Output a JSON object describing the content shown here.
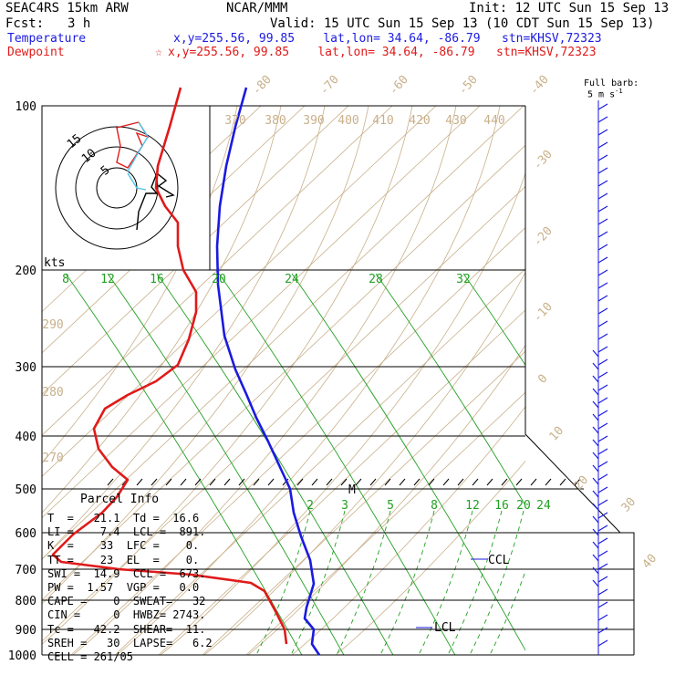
{
  "header": {
    "model": "SEAC4RS 15km ARW",
    "fcst_label": "Fcst:",
    "fcst_value": "3 h",
    "center": "NCAR/MMM",
    "init": "Init: 12 UTC Sun 15 Sep 13",
    "valid": "Valid: 15 UTC Sun 15 Sep 13 (10 CDT Sun 15 Sep 13)",
    "temperature_label": "Temperature",
    "temperature_info": "x,y=255.56, 99.85    lat,lon= 34.64, -86.79   stn=KHSV,72323",
    "dewpoint_label": "Dewpoint",
    "dewpoint_marker": "☆",
    "dewpoint_info": "x,y=255.56, 99.85    lat,lon= 34.64, -86.79   stn=KHSV,72323",
    "barb_note_1": "Full barb:",
    "barb_note_2": "5 m s",
    "barb_note_sup": "-1"
  },
  "colors": {
    "temperature": "#1a1ae0",
    "dewpoint": "#e01a1a",
    "isotherm": "#c8b08a",
    "mixing_ratio": "#22a022",
    "hodo_low": "#4fc3e8"
  },
  "chart_data": {
    "type": "line",
    "title": "",
    "ylabel": "",
    "pressure_levels": [
      "100",
      "200",
      "300",
      "400",
      "500",
      "600",
      "700",
      "800",
      "900",
      "1000"
    ],
    "isotherm_labels": [
      "-80",
      "-70",
      "-60",
      "-50",
      "-40",
      "-30",
      "-20",
      "-10",
      "0",
      "10",
      "20",
      "30",
      "40"
    ],
    "theta_labels_top": [
      "370",
      "380",
      "390",
      "400",
      "410",
      "420",
      "430",
      "440"
    ],
    "theta_labels_left": [
      "290",
      "280",
      "270"
    ],
    "mixing_ratio_labels_upper": [
      "8",
      "12",
      "16",
      "20",
      "24",
      "28",
      "32"
    ],
    "mixing_ratio_labels_lower": [
      "2",
      "3",
      "5",
      "8",
      "12",
      "16",
      "20",
      "24"
    ],
    "hodograph": {
      "unit_label": "kts",
      "ring_labels": [
        "15",
        "10",
        "5"
      ]
    },
    "annotations": {
      "ccl": "CCL",
      "lcl": "LCL",
      "m": "M"
    },
    "series": [
      {
        "name": "Temperature",
        "points": [
          [
            270,
            96
          ],
          [
            258,
            139
          ],
          [
            248,
            182
          ],
          [
            241,
            226
          ],
          [
            238,
            270
          ],
          [
            239,
            312
          ],
          [
            246,
            368
          ],
          [
            258,
            405
          ],
          [
            270,
            432
          ],
          [
            281,
            458
          ],
          [
            294,
            484
          ],
          [
            306,
            510
          ],
          [
            318,
            536
          ],
          [
            322,
            562
          ],
          [
            330,
            588
          ],
          [
            340,
            614
          ],
          [
            344,
            640
          ],
          [
            336,
            666
          ],
          [
            334,
            678
          ],
          [
            344,
            690
          ],
          [
            342,
            706
          ],
          [
            350,
            718
          ]
        ]
      },
      {
        "name": "Dewpoint",
        "points": [
          [
            198,
            96
          ],
          [
            186,
            139
          ],
          [
            173,
            182
          ],
          [
            171,
            206
          ],
          [
            181,
            226
          ],
          [
            195,
            244
          ],
          [
            195,
            270
          ],
          [
            201,
            296
          ],
          [
            215,
            320
          ],
          [
            215,
            342
          ],
          [
            207,
            372
          ],
          [
            195,
            400
          ],
          [
            171,
            418
          ],
          [
            140,
            433
          ],
          [
            115,
            448
          ],
          [
            103,
            470
          ],
          [
            108,
            492
          ],
          [
            123,
            512
          ],
          [
            140,
            526
          ],
          [
            128,
            545
          ],
          [
            112,
            562
          ],
          [
            80,
            586
          ],
          [
            58,
            608
          ],
          [
            67,
            616
          ],
          [
            130,
            624
          ],
          [
            210,
            630
          ],
          [
            275,
            639
          ],
          [
            290,
            648
          ],
          [
            302,
            670
          ],
          [
            312,
            690
          ],
          [
            314,
            706
          ]
        ]
      }
    ]
  },
  "parcel_info": {
    "title": "Parcel Info",
    "rows": [
      "T  =   21.1  Td =  16.6",
      "LI =    7.4  LCL =  891.",
      "K  =    33  LFC =    0.",
      "TT =    23  EL  =    0.",
      "SWI =  14.9  CCL =  673.",
      "PW =  1.57  VGP =   0.0",
      "CAPE =    0  SWEAT=   32",
      "CIN =     0  HWBZ= 2743.",
      "Tc =   42.2  SHEAR=  11.",
      "SREH =   30  LAPSE=   6.2",
      "CELL = 261/05"
    ]
  }
}
